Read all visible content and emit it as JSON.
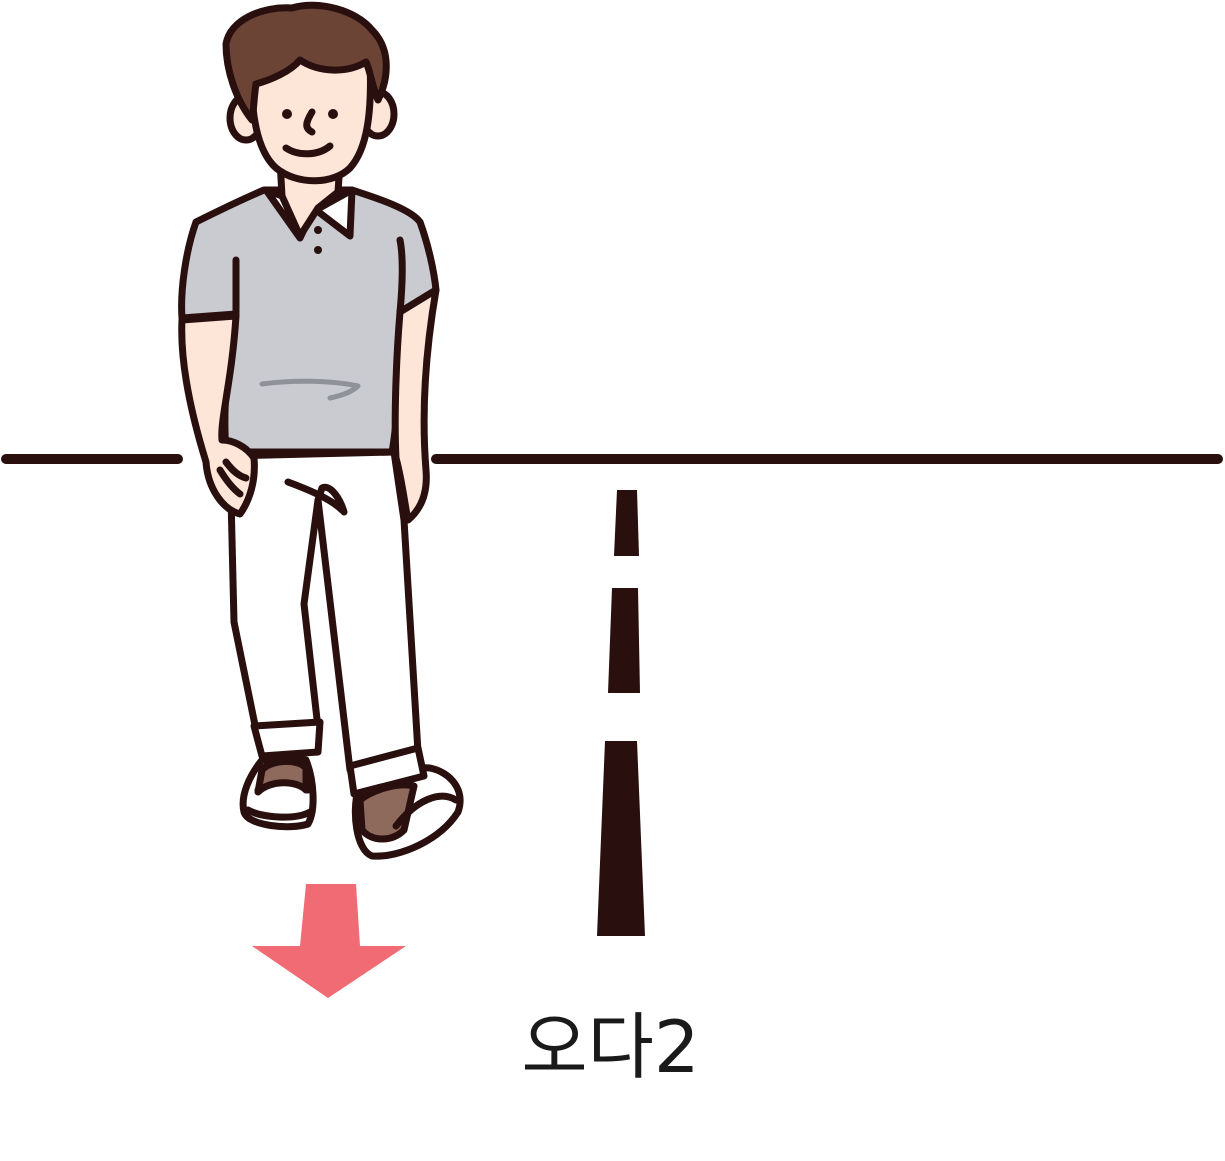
{
  "caption": "오다2",
  "colors": {
    "outline": "#2a0f0f",
    "shirt": "#c9cbd0",
    "skin": "#fde6d8",
    "hair": "#6b4436",
    "shoe": "#8e6a5c",
    "arrow": "#f06b74",
    "background": "#ffffff"
  },
  "icons": {
    "person": "person-walking-toward-viewer",
    "arrow": "arrow-down-icon",
    "road": "road-center-dashed-line"
  }
}
